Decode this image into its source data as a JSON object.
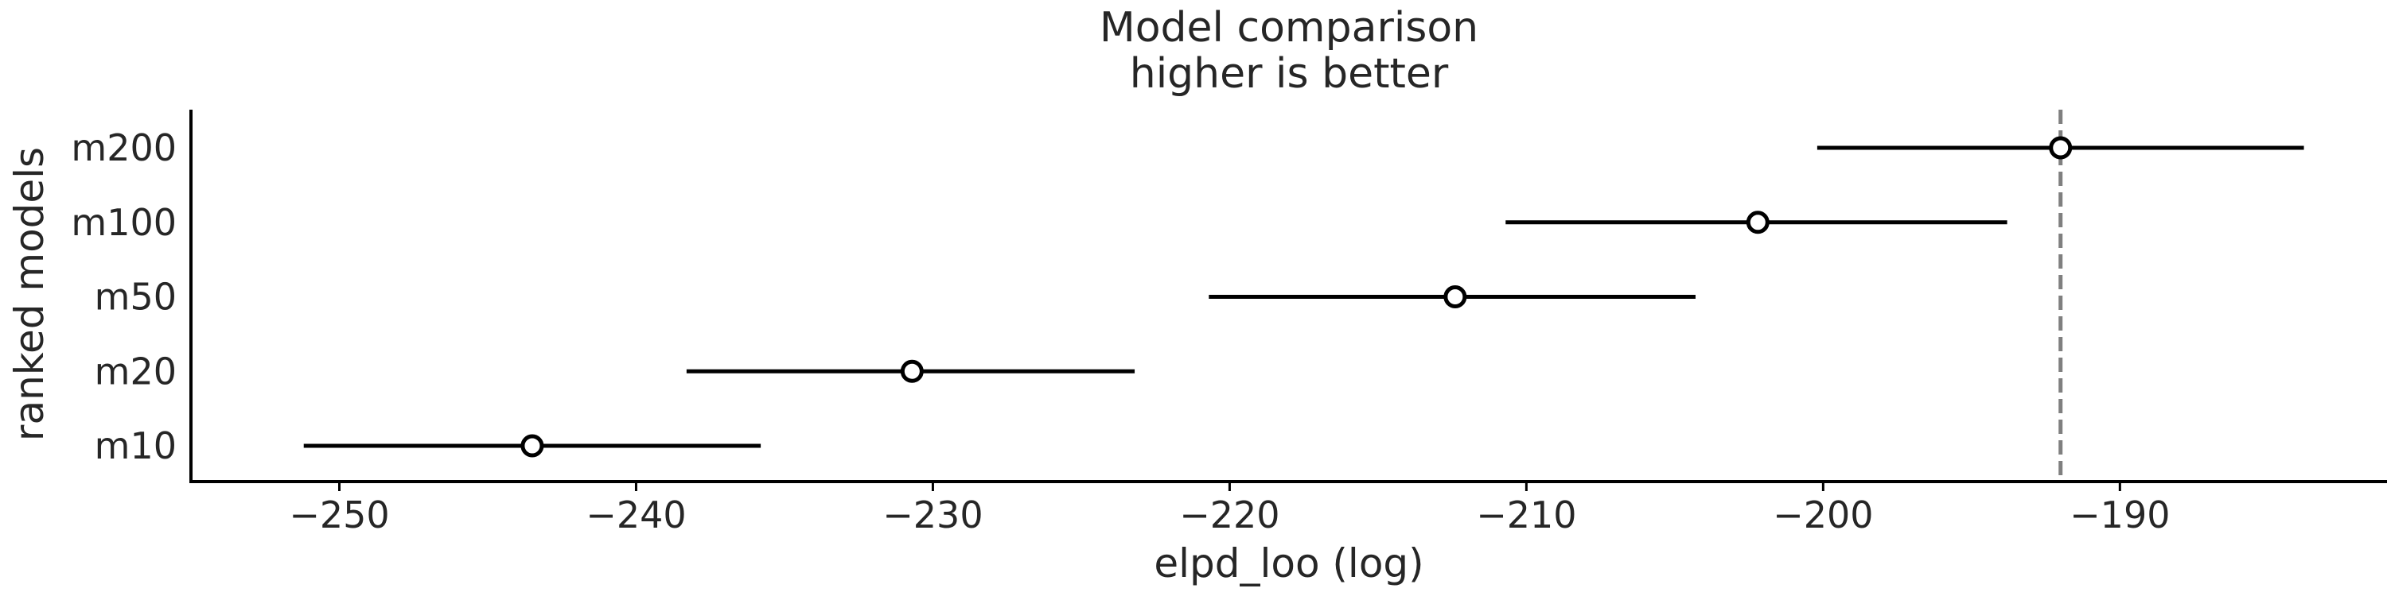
{
  "chart_data": {
    "type": "forest",
    "title": "Model comparison",
    "subtitle": "higher is better",
    "xlabel": "elpd_loo (log)",
    "ylabel": "ranked models",
    "xlim": [
      -255,
      -181
    ],
    "xticks": [
      -250,
      -240,
      -230,
      -220,
      -210,
      -200,
      -190
    ],
    "xtick_labels": [
      "−250",
      "−240",
      "−230",
      "−220",
      "−210",
      "−200",
      "−190"
    ],
    "reference_line": -192.0,
    "grid": false,
    "models": [
      {
        "name": "m200",
        "elpd": -192.0,
        "low": -200.2,
        "high": -183.8
      },
      {
        "name": "m100",
        "elpd": -202.2,
        "low": -210.7,
        "high": -193.8
      },
      {
        "name": "m50",
        "elpd": -212.4,
        "low": -220.7,
        "high": -204.3
      },
      {
        "name": "m20",
        "elpd": -230.7,
        "low": -238.3,
        "high": -223.2
      },
      {
        "name": "m10",
        "elpd": -243.5,
        "low": -251.2,
        "high": -235.8
      }
    ],
    "colors": {
      "point_face": "#ffffff",
      "point_edge": "#000000",
      "interval": "#000000",
      "reference_line": "#7f7f7f",
      "axis": "#000000",
      "text": "#262626"
    }
  }
}
